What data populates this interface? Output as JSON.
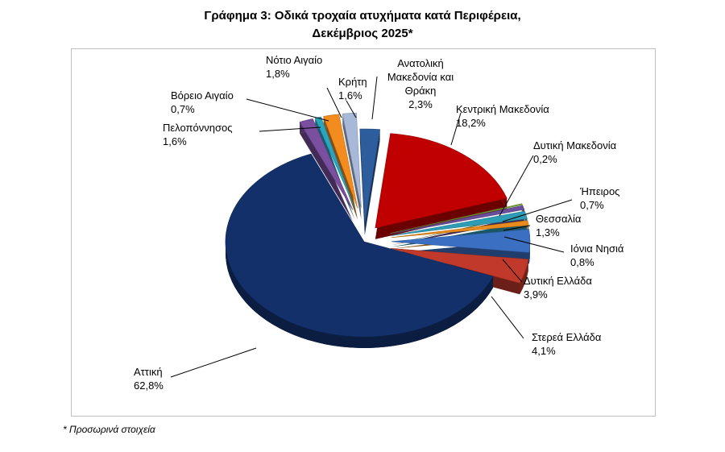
{
  "title_line1": "Γράφημα 3: Οδικά τροχαία ατυχήματα κατά Περιφέρεια,",
  "title_line2": "Δεκέμβριος 2025*",
  "footnote": "* Προσωρινά στοιχεία",
  "chart_data": {
    "type": "pie",
    "title": "Γράφημα 3: Οδικά τροχαία ατυχήματα κατά Περιφέρεια, Δεκέμβριος 2025*",
    "unit": "%",
    "exploded": true,
    "slices": [
      {
        "label": "Ανατολική Μακεδονία και Θράκη",
        "value": 2.3,
        "value_text": "2,3%",
        "color": "#2e5d9e"
      },
      {
        "label": "Κεντρική Μακεδονία",
        "value": 18.2,
        "value_text": "18,2%",
        "color": "#c00000"
      },
      {
        "label": "Δυτική Μακεδονία",
        "value": 0.2,
        "value_text": "0,2%",
        "color": "#7aa23a"
      },
      {
        "label": "Ήπειρος",
        "value": 0.7,
        "value_text": "0,7%",
        "color": "#6b4e9b"
      },
      {
        "label": "Θεσσαλία",
        "value": 1.3,
        "value_text": "1,3%",
        "color": "#2f9cb5"
      },
      {
        "label": "Ιόνια Νησιά",
        "value": 0.8,
        "value_text": "0,8%",
        "color": "#e98a1c"
      },
      {
        "label": "Δυτική Ελλάδα",
        "value": 3.9,
        "value_text": "3,9%",
        "color": "#3a6fc2"
      },
      {
        "label": "Στερεά Ελλάδα",
        "value": 4.1,
        "value_text": "4,1%",
        "color": "#c0392b"
      },
      {
        "label": "Αττική",
        "value": 62.8,
        "value_text": "62,8%",
        "color": "#13306a"
      },
      {
        "label": "Πελοπόννησος",
        "value": 1.6,
        "value_text": "1,6%",
        "color": "#7a4fa0"
      },
      {
        "label": "Βόρειο Αιγαίο",
        "value": 0.7,
        "value_text": "0,7%",
        "color": "#2aa5c0"
      },
      {
        "label": "Νότιο Αιγαίο",
        "value": 1.8,
        "value_text": "1,8%",
        "color": "#f28c1e"
      },
      {
        "label": "Κρήτη",
        "value": 1.6,
        "value_text": "1,6%",
        "color": "#a8b8d8"
      }
    ]
  }
}
